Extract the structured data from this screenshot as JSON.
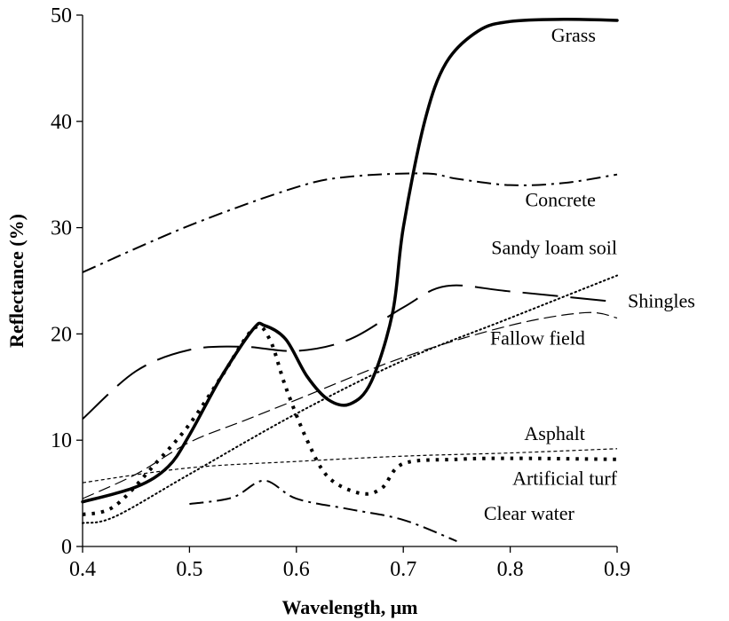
{
  "chart_data": {
    "type": "line",
    "title": "",
    "xlabel": "Wavelength, μm",
    "ylabel": "Reflectance (%)",
    "xlim": [
      0.4,
      0.9
    ],
    "ylim": [
      0,
      50
    ],
    "x_ticks": [
      "0.4",
      "0.5",
      "0.6",
      "0.7",
      "0.8",
      "0.9"
    ],
    "y_ticks": [
      "0",
      "10",
      "20",
      "30",
      "40",
      "50"
    ],
    "grid": false,
    "legend": "none (series labelled directly on curves)",
    "series": [
      {
        "name": "Grass",
        "style": "solid-thick",
        "points": [
          [
            0.4,
            4.2
          ],
          [
            0.45,
            5.6
          ],
          [
            0.48,
            7.5
          ],
          [
            0.5,
            10.5
          ],
          [
            0.53,
            16
          ],
          [
            0.56,
            20.5
          ],
          [
            0.57,
            20.8
          ],
          [
            0.59,
            19.5
          ],
          [
            0.61,
            16
          ],
          [
            0.63,
            13.8
          ],
          [
            0.65,
            13.4
          ],
          [
            0.67,
            15.5
          ],
          [
            0.69,
            22
          ],
          [
            0.7,
            30
          ],
          [
            0.72,
            40
          ],
          [
            0.74,
            45.5
          ],
          [
            0.77,
            48.5
          ],
          [
            0.8,
            49.4
          ],
          [
            0.85,
            49.6
          ],
          [
            0.9,
            49.5
          ]
        ]
      },
      {
        "name": "Concrete",
        "style": "dash-dot",
        "points": [
          [
            0.4,
            25.8
          ],
          [
            0.5,
            30.2
          ],
          [
            0.6,
            33.8
          ],
          [
            0.65,
            34.8
          ],
          [
            0.72,
            35.1
          ],
          [
            0.75,
            34.6
          ],
          [
            0.8,
            34
          ],
          [
            0.85,
            34.2
          ],
          [
            0.9,
            35
          ]
        ]
      },
      {
        "name": "Sandy loam soil",
        "style": "dotted",
        "points": [
          [
            0.4,
            2.2
          ],
          [
            0.43,
            2.8
          ],
          [
            0.5,
            6.8
          ],
          [
            0.6,
            12.5
          ],
          [
            0.7,
            17.5
          ],
          [
            0.8,
            21.5
          ],
          [
            0.9,
            25.5
          ]
        ]
      },
      {
        "name": "Shingles",
        "style": "long-dash",
        "points": [
          [
            0.4,
            12
          ],
          [
            0.45,
            16.5
          ],
          [
            0.5,
            18.5
          ],
          [
            0.55,
            18.8
          ],
          [
            0.6,
            18.4
          ],
          [
            0.65,
            19.5
          ],
          [
            0.7,
            22.5
          ],
          [
            0.74,
            24.5
          ],
          [
            0.8,
            24
          ],
          [
            0.9,
            23
          ]
        ]
      },
      {
        "name": "Fallow field",
        "style": "dashed",
        "points": [
          [
            0.4,
            4.5
          ],
          [
            0.45,
            6.8
          ],
          [
            0.5,
            9.8
          ],
          [
            0.55,
            11.8
          ],
          [
            0.6,
            13.8
          ],
          [
            0.7,
            17.8
          ],
          [
            0.8,
            20.8
          ],
          [
            0.87,
            22
          ],
          [
            0.9,
            21.5
          ]
        ]
      },
      {
        "name": "Asphalt",
        "style": "fine-dash",
        "points": [
          [
            0.4,
            6
          ],
          [
            0.5,
            7.4
          ],
          [
            0.6,
            8
          ],
          [
            0.7,
            8.5
          ],
          [
            0.8,
            8.8
          ],
          [
            0.9,
            9.2
          ]
        ]
      },
      {
        "name": "Artificial turf",
        "style": "square-dots",
        "points": [
          [
            0.4,
            3
          ],
          [
            0.43,
            3.8
          ],
          [
            0.47,
            8
          ],
          [
            0.5,
            11.5
          ],
          [
            0.53,
            16
          ],
          [
            0.56,
            20.5
          ],
          [
            0.575,
            19.5
          ],
          [
            0.59,
            15
          ],
          [
            0.61,
            10
          ],
          [
            0.63,
            6.5
          ],
          [
            0.66,
            5
          ],
          [
            0.68,
            5.5
          ],
          [
            0.7,
            7.8
          ],
          [
            0.75,
            8.2
          ],
          [
            0.8,
            8.3
          ],
          [
            0.9,
            8.2
          ]
        ]
      },
      {
        "name": "Clear water",
        "style": "dash-dot",
        "points": [
          [
            0.5,
            4
          ],
          [
            0.54,
            4.6
          ],
          [
            0.57,
            6.2
          ],
          [
            0.6,
            4.5
          ],
          [
            0.65,
            3.5
          ],
          [
            0.7,
            2.5
          ],
          [
            0.75,
            0.5
          ]
        ]
      }
    ]
  },
  "labels": [
    {
      "name": "Grass",
      "x": 0.88,
      "y": 47.5,
      "anchor": "end"
    },
    {
      "name": "Concrete",
      "x": 0.88,
      "y": 32,
      "anchor": "end"
    },
    {
      "name": "Sandy loam soil",
      "x": 0.9,
      "y": 27.5,
      "anchor": "end"
    },
    {
      "name": "Shingles",
      "x": 0.91,
      "y": 22.5,
      "anchor": "start"
    },
    {
      "name": "Fallow field",
      "x": 0.87,
      "y": 19,
      "anchor": "end"
    },
    {
      "name": "Asphalt",
      "x": 0.87,
      "y": 10,
      "anchor": "end"
    },
    {
      "name": "Artificial turf",
      "x": 0.9,
      "y": 5.8,
      "anchor": "end"
    },
    {
      "name": "Clear water",
      "x": 0.86,
      "y": 2.5,
      "anchor": "end"
    }
  ]
}
